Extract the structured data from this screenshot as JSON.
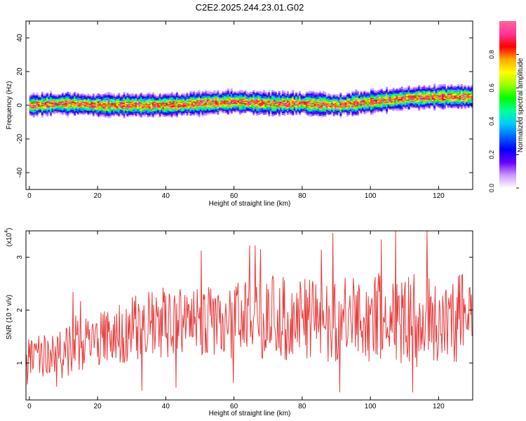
{
  "chart_data": [
    {
      "type": "heatmap",
      "title": "C2E2.2025.244.23.01.G02",
      "xlabel": "Height of straight line (km)",
      "ylabel": "Frequency (Hz)",
      "xlim": [
        -1,
        130
      ],
      "ylim": [
        -50,
        50
      ],
      "x_ticks": [
        0,
        20,
        40,
        60,
        80,
        100,
        120
      ],
      "y_ticks": [
        -40,
        -20,
        0,
        20,
        40
      ],
      "colorbar": {
        "label": "Normalized spectral amplitude",
        "range": [
          0,
          1
        ],
        "ticks": [
          "0.0",
          "0.2",
          "0.4",
          "0.6",
          "0.8"
        ],
        "colors": [
          "#ffffff",
          "#cc99ff",
          "#6600ff",
          "#0000ff",
          "#0066ff",
          "#00ccff",
          "#00ff99",
          "#00ff00",
          "#99ff00",
          "#ffff00",
          "#ffaa00",
          "#ff0000",
          "#ff3399",
          "#ff6699"
        ]
      },
      "ridge": {
        "x": [
          0,
          10,
          20,
          30,
          40,
          50,
          60,
          70,
          80,
          90,
          100,
          110,
          120,
          130
        ],
        "center_frequency": [
          0,
          1,
          0,
          0,
          0,
          1,
          2,
          1,
          1,
          0,
          2,
          4,
          5,
          5
        ]
      }
    },
    {
      "type": "line",
      "xlabel": "Height of straight line (km)",
      "ylabel": "SNR (10 * v/v)",
      "multiplier_label": "(x10",
      "multiplier_exp": "4",
      "multiplier_close": ")",
      "xlim": [
        -1,
        130
      ],
      "ylim": [
        0.3,
        3.5
      ],
      "x_ticks": [
        0,
        20,
        40,
        60,
        80,
        100,
        120
      ],
      "y_ticks": [
        1,
        2,
        3
      ],
      "line_color": "#e83a3a",
      "trend": {
        "x": [
          0,
          10,
          20,
          30,
          40,
          50,
          60,
          70,
          80,
          90,
          100,
          110,
          120,
          130
        ],
        "mean": [
          1.1,
          1.2,
          1.45,
          1.6,
          1.75,
          1.7,
          1.8,
          1.85,
          1.85,
          1.8,
          1.85,
          1.8,
          1.8,
          1.9
        ],
        "amplitude": [
          0.35,
          0.5,
          0.5,
          0.65,
          0.7,
          0.7,
          0.75,
          0.8,
          0.8,
          0.8,
          0.85,
          0.9,
          0.85,
          0.9
        ]
      }
    }
  ]
}
